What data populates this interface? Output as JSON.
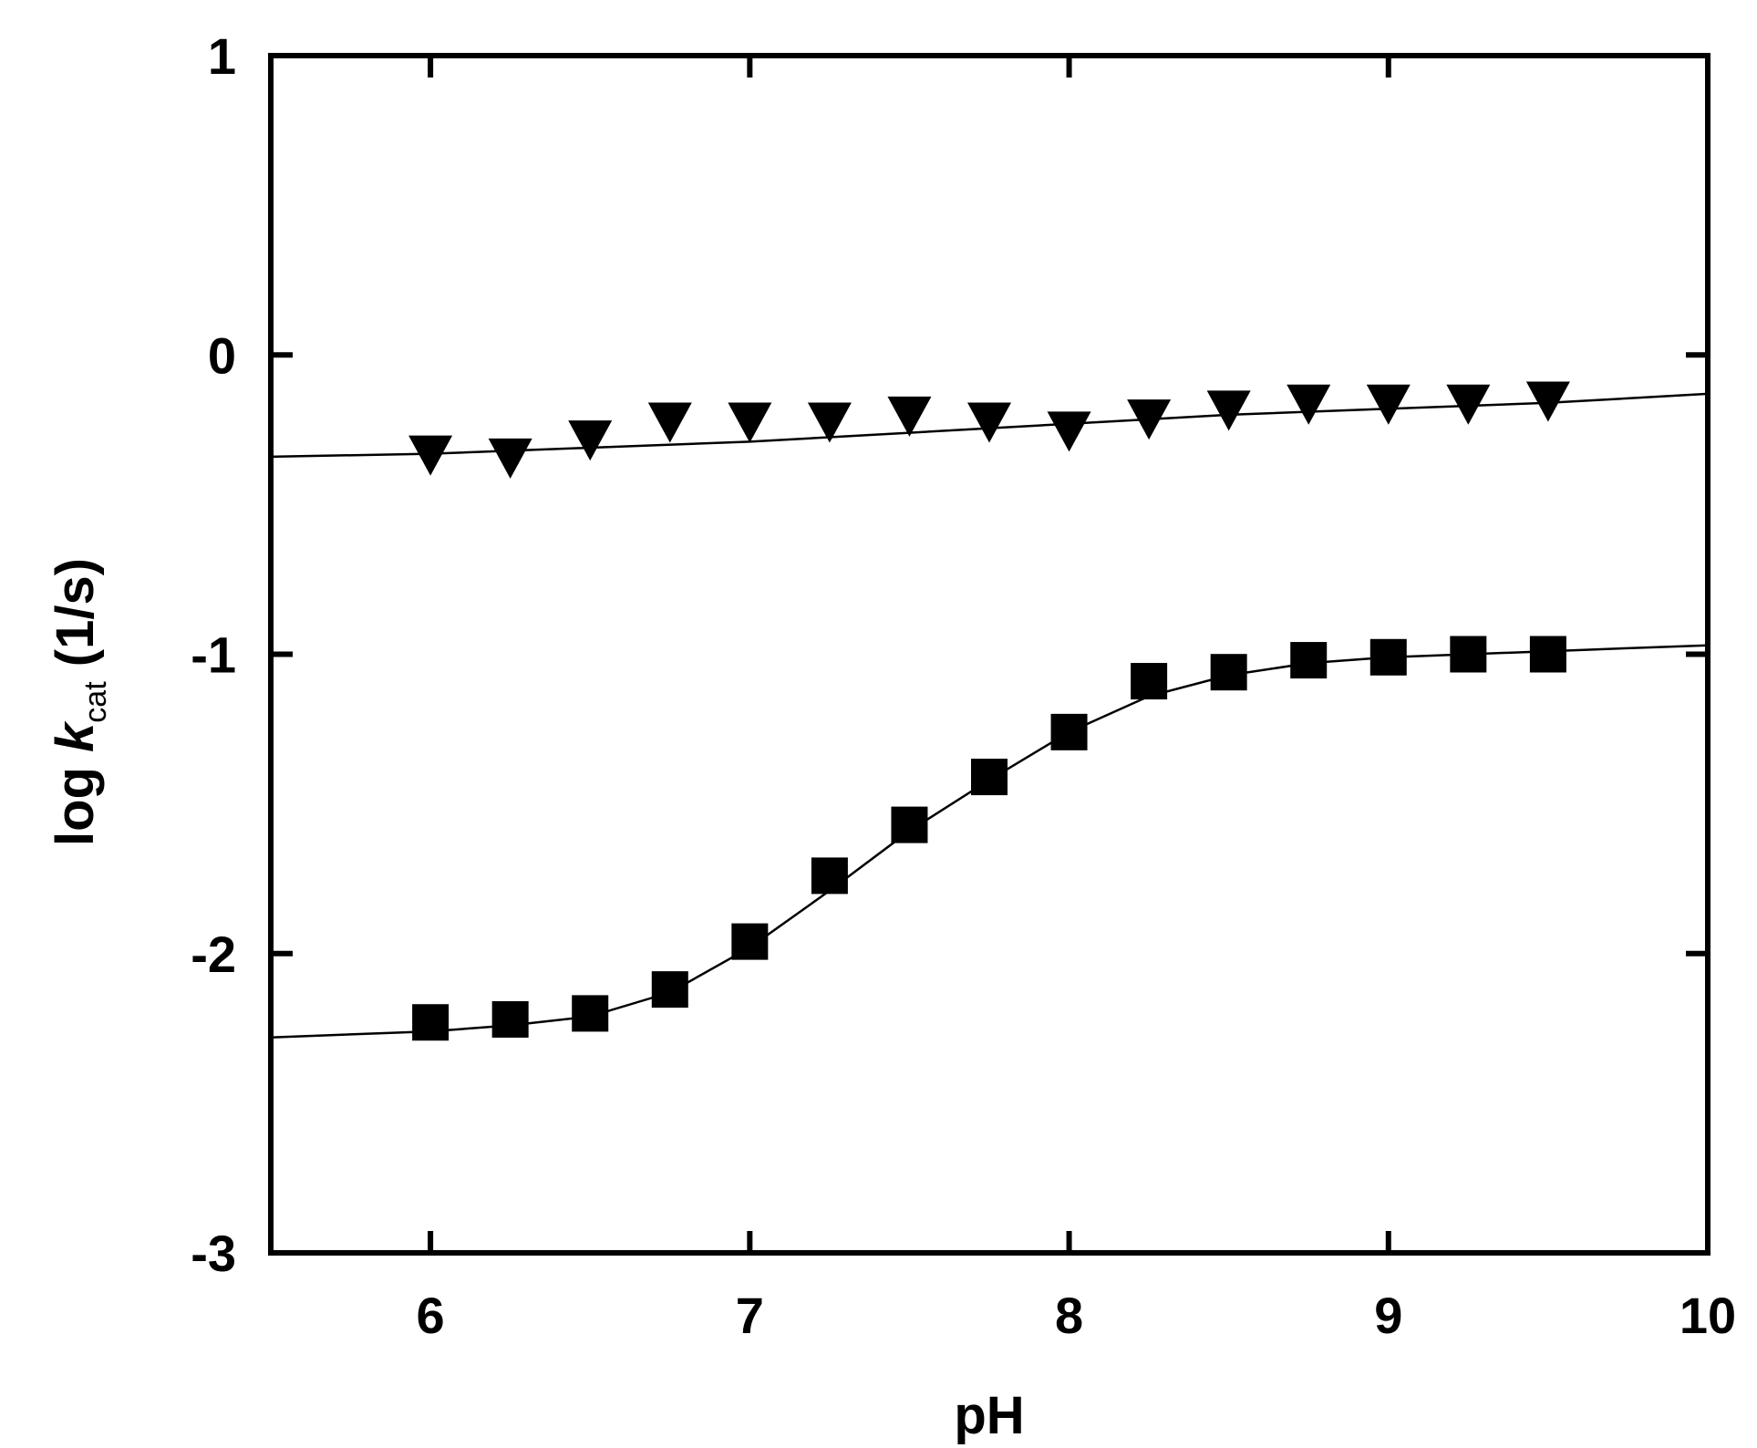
{
  "chart_data": {
    "type": "scatter",
    "xlabel": "pH",
    "ylabel": {
      "prefix": "log ",
      "symbol": "k",
      "subscript": "cat",
      "suffix": " (1/s)"
    },
    "xlim": [
      5.5,
      10
    ],
    "ylim": [
      -3,
      1
    ],
    "x_ticks": [
      6,
      7,
      8,
      9,
      10
    ],
    "y_ticks": [
      1,
      0,
      -1,
      -2,
      -3
    ],
    "grid": false,
    "legend": "none",
    "series": [
      {
        "marker": "triangle-down",
        "x": [
          6.0,
          6.25,
          6.5,
          6.75,
          7.0,
          7.25,
          7.5,
          7.75,
          8.0,
          8.25,
          8.5,
          8.75,
          9.0,
          9.25,
          9.5
        ],
        "y": [
          -0.33,
          -0.34,
          -0.28,
          -0.22,
          -0.22,
          -0.22,
          -0.2,
          -0.22,
          -0.25,
          -0.21,
          -0.18,
          -0.16,
          -0.16,
          -0.16,
          -0.15
        ],
        "fit": {
          "x": [
            5.5,
            6.0,
            6.5,
            7.0,
            7.5,
            8.0,
            8.5,
            9.0,
            9.5,
            10.0
          ],
          "y": [
            -0.34,
            -0.33,
            -0.31,
            -0.29,
            -0.26,
            -0.23,
            -0.2,
            -0.18,
            -0.16,
            -0.13
          ]
        }
      },
      {
        "marker": "square",
        "x": [
          6.0,
          6.25,
          6.5,
          6.75,
          7.0,
          7.25,
          7.5,
          7.75,
          8.0,
          8.25,
          8.5,
          8.75,
          9.0,
          9.25,
          9.5
        ],
        "y": [
          -2.23,
          -2.22,
          -2.2,
          -2.12,
          -1.96,
          -1.74,
          -1.57,
          -1.41,
          -1.26,
          -1.09,
          -1.06,
          -1.02,
          -1.01,
          -1.0,
          -1.0
        ],
        "fit": {
          "x": [
            5.5,
            5.75,
            6.0,
            6.25,
            6.5,
            6.75,
            7.0,
            7.25,
            7.5,
            7.75,
            8.0,
            8.25,
            8.5,
            8.75,
            9.0,
            9.25,
            9.5,
            9.75,
            10.0
          ],
          "y": [
            -2.28,
            -2.27,
            -2.26,
            -2.24,
            -2.21,
            -2.13,
            -1.98,
            -1.79,
            -1.59,
            -1.42,
            -1.26,
            -1.14,
            -1.07,
            -1.03,
            -1.01,
            -1.0,
            -0.99,
            -0.98,
            -0.97
          ]
        }
      }
    ]
  }
}
